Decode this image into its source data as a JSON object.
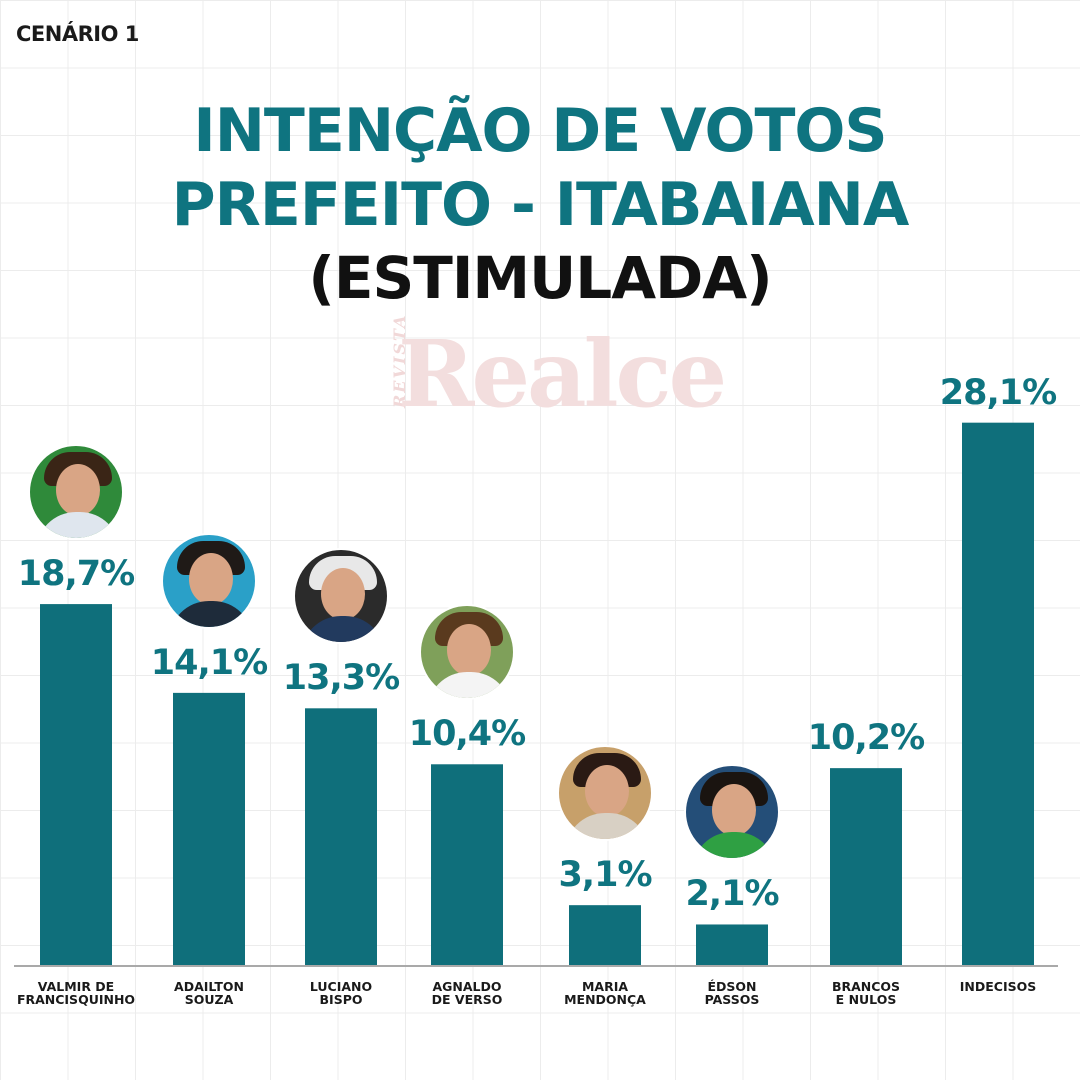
{
  "scenario": "CENÁRIO 1",
  "watermark": {
    "small": "REVISTA",
    "big": "Realce"
  },
  "chart_data": {
    "type": "bar",
    "title_lines": [
      "INTENÇÃO DE VOTOS",
      "PREFEITO - ITABAIANA",
      "(ESTIMULADA)"
    ],
    "categories": [
      [
        "VALMIR DE",
        "FRANCISQUINHO"
      ],
      [
        "ADAILTON",
        "SOUZA"
      ],
      [
        "LUCIANO",
        "BISPO"
      ],
      [
        "AGNALDO",
        "DE VERSO"
      ],
      [
        "MARIA",
        "MENDONÇA"
      ],
      [
        "ÉDSON",
        "PASSOS"
      ],
      [
        "BRANCOS",
        "E NULOS"
      ],
      [
        "INDECISOS"
      ]
    ],
    "values": [
      18.7,
      14.1,
      13.3,
      10.4,
      3.1,
      2.1,
      10.2,
      28.1
    ],
    "value_labels": [
      "18,7%",
      "14,1%",
      "13,3%",
      "10,4%",
      "3,1%",
      "2,1%",
      "10,2%",
      "28,1%"
    ],
    "has_photo": [
      true,
      true,
      true,
      true,
      true,
      true,
      false,
      false
    ],
    "bar_color": "#0f6f7b",
    "label_color": "#0f7480",
    "xlabel": "",
    "ylabel": "",
    "ylim": [
      0,
      30
    ],
    "grid": true
  }
}
